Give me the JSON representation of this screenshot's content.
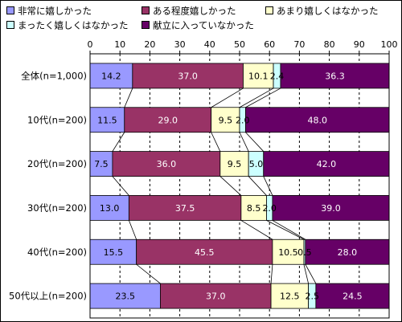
{
  "chart_data": {
    "type": "bar",
    "orientation": "horizontal",
    "stacked": true,
    "xlim": [
      0,
      100
    ],
    "xticks": [
      "0",
      "10",
      "20",
      "30",
      "40",
      "50",
      "60",
      "70",
      "80",
      "90",
      "100"
    ],
    "grid": true,
    "legend_position": "top",
    "categories": [
      "全体(n=1,000)",
      "10代(n=200)",
      "20代(n=200)",
      "30代(n=200)",
      "40代(n=200)",
      "50代以上(n=200)"
    ],
    "series": [
      {
        "name": "非常に嬉しかった",
        "color": "#9999ff",
        "values": [
          14.2,
          11.5,
          7.5,
          13.0,
          15.5,
          23.5
        ]
      },
      {
        "name": "ある程度嬉しかった",
        "color": "#993366",
        "values": [
          37.0,
          29.0,
          36.0,
          37.5,
          45.5,
          37.0
        ]
      },
      {
        "name": "あまり嬉しくはなかった",
        "color": "#ffffcc",
        "values": [
          10.1,
          9.5,
          9.5,
          8.5,
          10.5,
          12.5
        ]
      },
      {
        "name": "まったく嬉しくはなかった",
        "color": "#ccffff",
        "values": [
          2.4,
          2.0,
          5.0,
          2.0,
          0.5,
          2.5
        ]
      },
      {
        "name": "献立に入っていなかった",
        "color": "#660066",
        "values": [
          36.3,
          48.0,
          42.0,
          39.0,
          28.0,
          24.5
        ]
      }
    ],
    "value_labels": [
      [
        "14.2",
        "11.5",
        "7.5",
        "13.0",
        "15.5",
        "23.5"
      ],
      [
        "37.0",
        "29.0",
        "36.0",
        "37.5",
        "45.5",
        "37.0"
      ],
      [
        "10.1",
        "9.5",
        "9.5",
        "8.5",
        "10.5",
        "12.5"
      ],
      [
        "2.4",
        "2.0",
        "5.0",
        "2.0",
        "0.5",
        "2.5"
      ],
      [
        "36.3",
        "48.0",
        "42.0",
        "39.0",
        "28.0",
        "24.5"
      ]
    ]
  }
}
